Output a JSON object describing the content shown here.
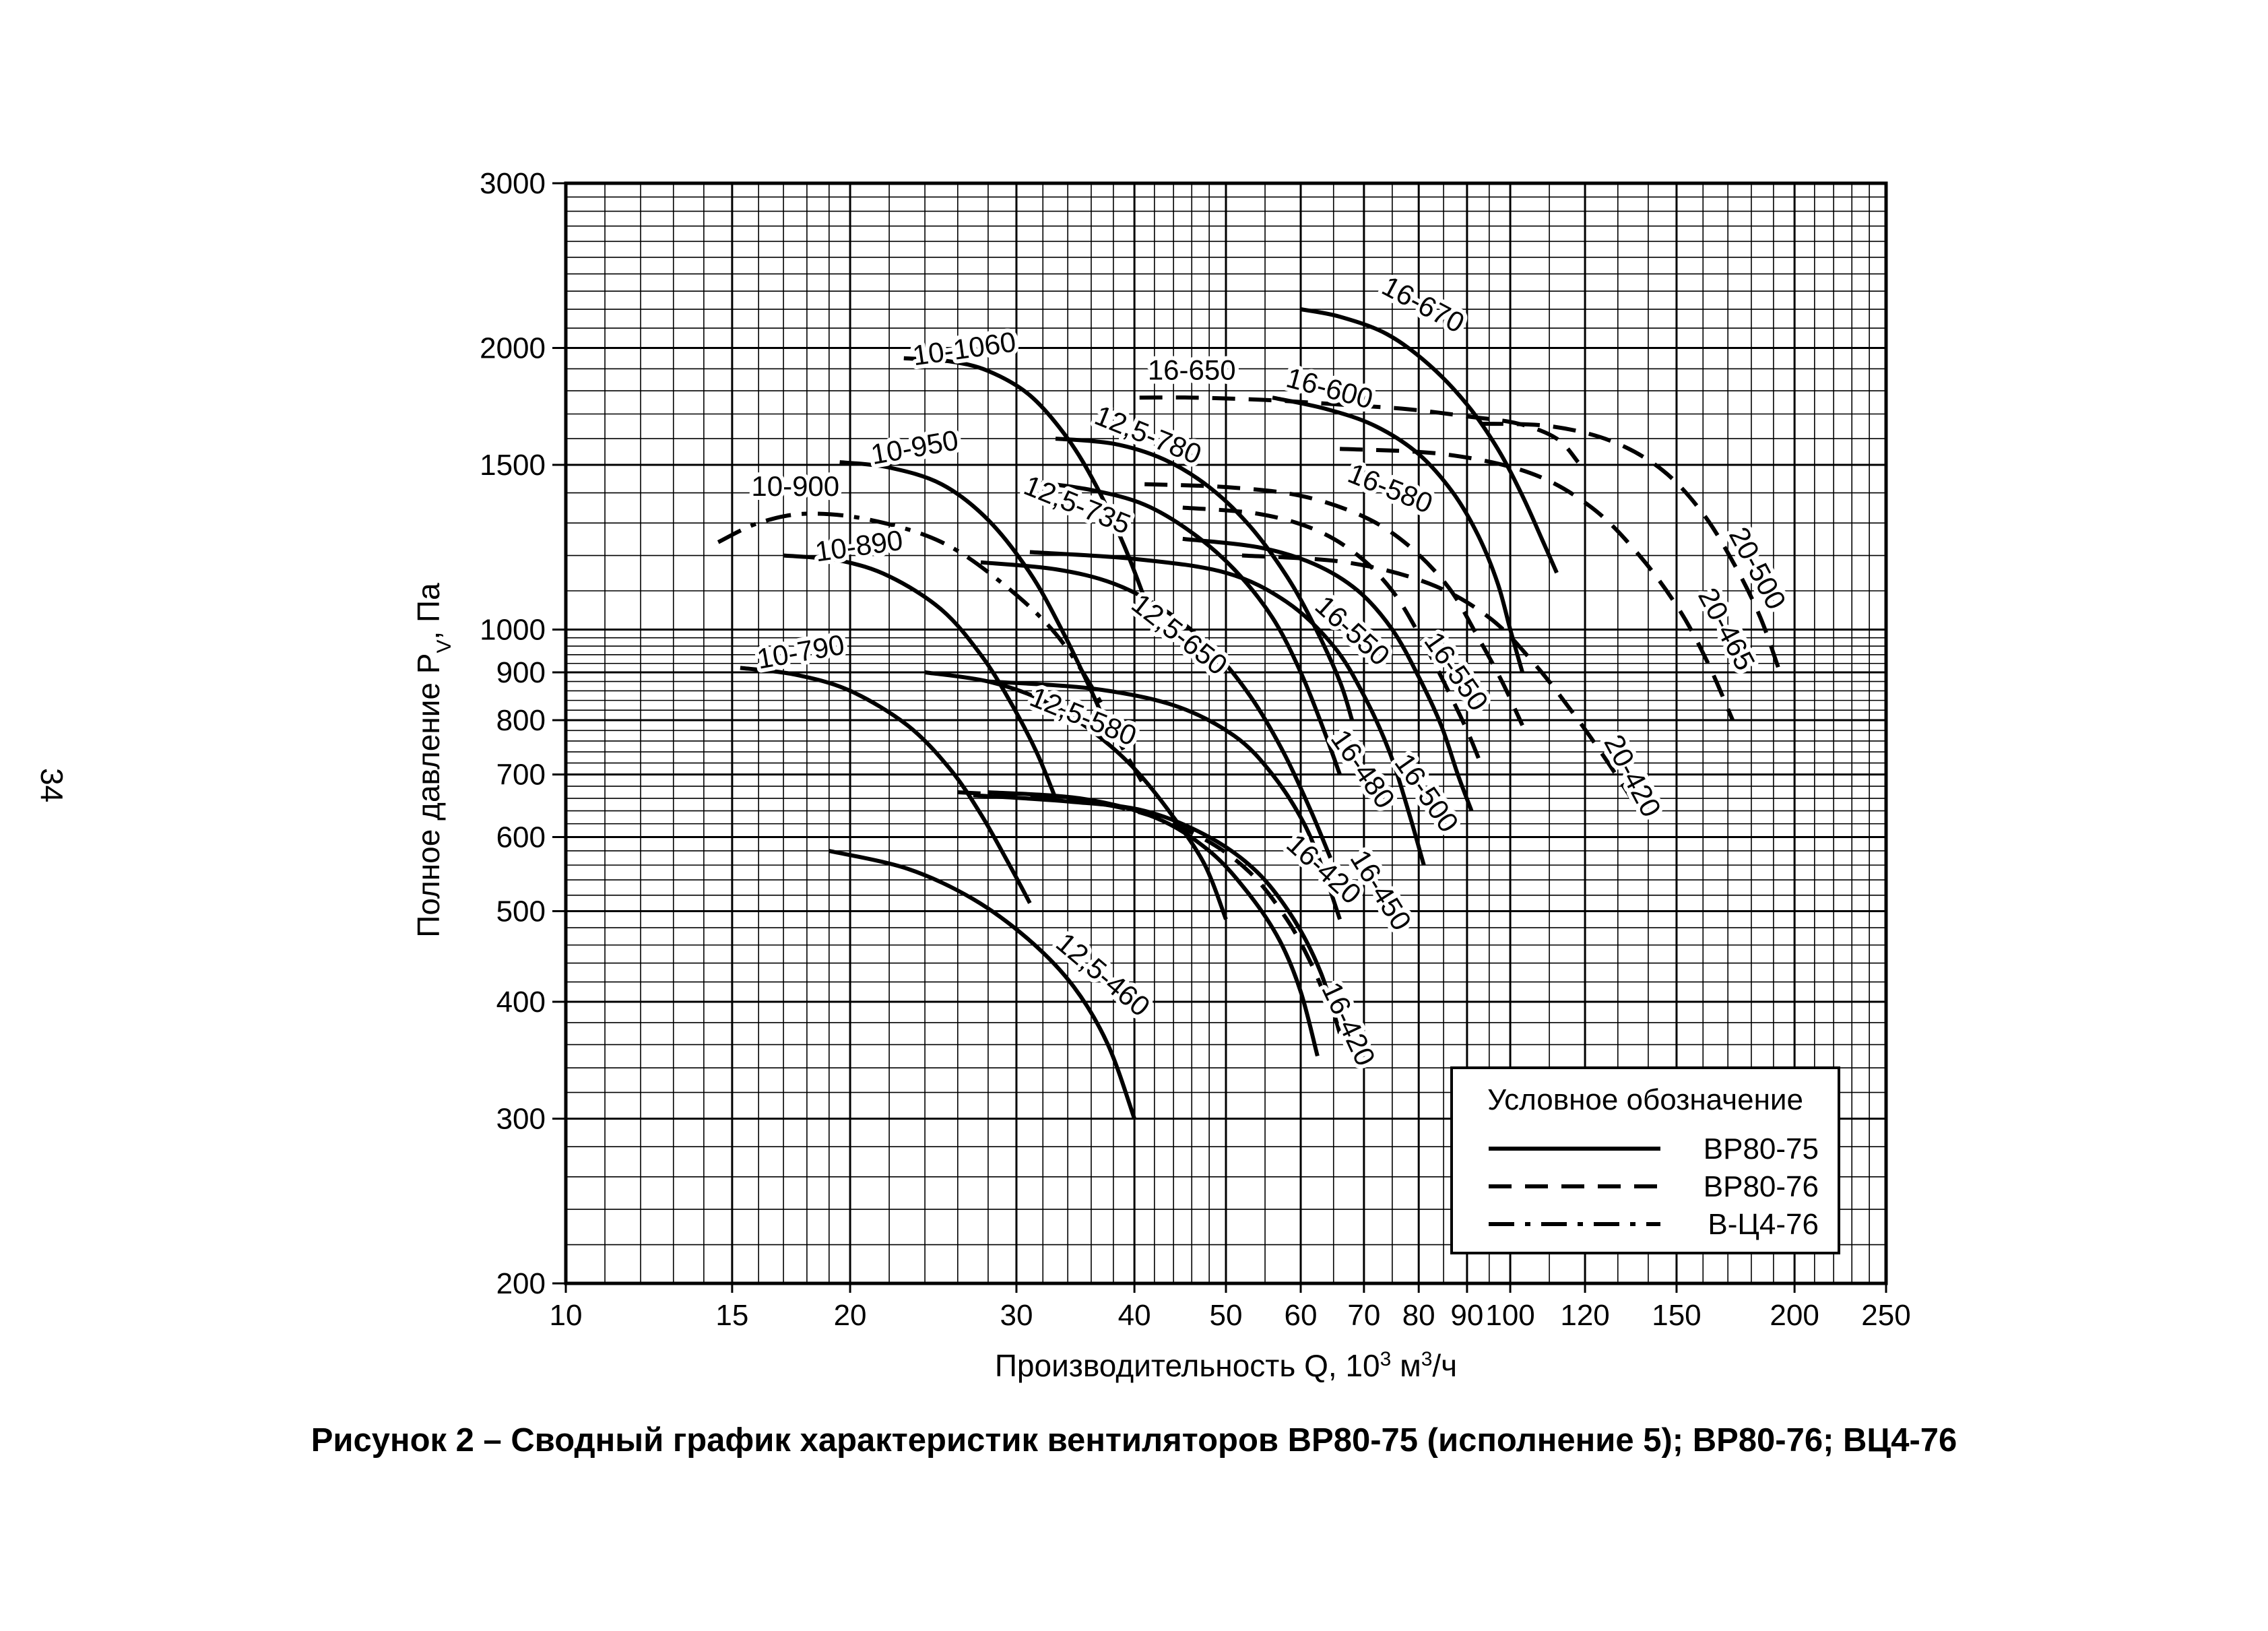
{
  "page_number": "34",
  "caption": "Рисунок 2 – Сводный график характеристик вентиляторов ВР80-75 (исполнение 5); ВР80-76; ВЦ4-76",
  "chart_data": {
    "type": "line",
    "xscale": "log",
    "yscale": "log",
    "grid": true,
    "xlim": [
      10,
      250
    ],
    "ylim": [
      200,
      3000
    ],
    "xlabel_main": "Производительность Q, 10",
    "xlabel_sup": "3",
    "xlabel_unit": " м",
    "xlabel_unit_sup": "3",
    "xlabel_tail": "/ч",
    "ylabel_main": "Полное давление P",
    "ylabel_sub": "V",
    "ylabel_tail": ", Па",
    "x_ticks": [
      {
        "value": 10,
        "label": "10"
      },
      {
        "value": 15,
        "label": "15"
      },
      {
        "value": 20,
        "label": "20"
      },
      {
        "value": 30,
        "label": "30"
      },
      {
        "value": 40,
        "label": "40"
      },
      {
        "value": 50,
        "label": "50"
      },
      {
        "value": 60,
        "label": "60"
      },
      {
        "value": 70,
        "label": "70"
      },
      {
        "value": 80,
        "label": "80"
      },
      {
        "value": 90,
        "label": "90"
      },
      {
        "value": 100,
        "label": "100"
      },
      {
        "value": 120,
        "label": "120"
      },
      {
        "value": 150,
        "label": "150"
      },
      {
        "value": 200,
        "label": "200"
      },
      {
        "value": 250,
        "label": "250"
      }
    ],
    "y_ticks": [
      {
        "value": 200,
        "label": "200"
      },
      {
        "value": 300,
        "label": "300"
      },
      {
        "value": 400,
        "label": "400"
      },
      {
        "value": 500,
        "label": "500"
      },
      {
        "value": 600,
        "label": "600"
      },
      {
        "value": 700,
        "label": "700"
      },
      {
        "value": 800,
        "label": "800"
      },
      {
        "value": 900,
        "label": "900"
      },
      {
        "value": 1000,
        "label": "1000"
      },
      {
        "value": 1500,
        "label": "1500"
      },
      {
        "value": 2000,
        "label": "2000"
      },
      {
        "value": 3000,
        "label": "3000"
      }
    ],
    "legend": {
      "title": "Условное обозначение",
      "placement": "bottom-right",
      "items": [
        {
          "label": "ВР80-75",
          "style": "solid"
        },
        {
          "label": "ВР80-76",
          "style": "dashed"
        },
        {
          "label": "В-Ц4-76",
          "style": "dashdot"
        }
      ]
    },
    "series": [
      {
        "name": "10-1060",
        "style": "solid",
        "label_at": [
          26.5,
          1950
        ],
        "label_angle": 8,
        "points": [
          [
            22.8,
            1950
          ],
          [
            25.5,
            1935
          ],
          [
            28,
            1890
          ],
          [
            31,
            1780
          ],
          [
            34,
            1600
          ],
          [
            36.5,
            1420
          ],
          [
            39,
            1230
          ],
          [
            41,
            1080
          ]
        ]
      },
      {
        "name": "10-950",
        "style": "solid",
        "label_at": [
          23.5,
          1530
        ],
        "label_angle": 10,
        "points": [
          [
            19.5,
            1510
          ],
          [
            22,
            1490
          ],
          [
            25,
            1430
          ],
          [
            28,
            1310
          ],
          [
            31,
            1150
          ],
          [
            33.5,
            1000
          ],
          [
            36,
            860
          ],
          [
            38,
            760
          ]
        ]
      },
      {
        "name": "10-890",
        "style": "solid",
        "label_at": [
          20.5,
          1200
        ],
        "label_angle": 8,
        "points": [
          [
            17,
            1200
          ],
          [
            19.5,
            1185
          ],
          [
            22,
            1140
          ],
          [
            25,
            1050
          ],
          [
            27.5,
            940
          ],
          [
            29.5,
            840
          ],
          [
            31.5,
            740
          ],
          [
            33,
            660
          ]
        ]
      },
      {
        "name": "10-790",
        "style": "solid",
        "label_at": [
          17.8,
          925
        ],
        "label_angle": 10,
        "points": [
          [
            15.3,
            910
          ],
          [
            17.5,
            895
          ],
          [
            20,
            860
          ],
          [
            23,
            790
          ],
          [
            25.5,
            710
          ],
          [
            27.5,
            635
          ],
          [
            29.5,
            560
          ],
          [
            31,
            510
          ]
        ]
      },
      {
        "name": "10-900",
        "style": "dashdot",
        "label_at": [
          17.5,
          1390
        ],
        "label_angle": 0,
        "points": [
          [
            14.5,
            1240
          ],
          [
            16,
            1300
          ],
          [
            18,
            1330
          ],
          [
            21,
            1310
          ],
          [
            25,
            1240
          ],
          [
            29,
            1120
          ],
          [
            33,
            990
          ],
          [
            36.5,
            850
          ],
          [
            38.5,
            760
          ],
          [
            41,
            680
          ]
        ]
      },
      {
        "name": "12,5-780",
        "style": "solid",
        "label_at": [
          41,
          1580
        ],
        "label_angle": -22,
        "points": [
          [
            33,
            1600
          ],
          [
            38,
            1580
          ],
          [
            43,
            1520
          ],
          [
            48,
            1420
          ],
          [
            53,
            1290
          ],
          [
            58,
            1140
          ],
          [
            62,
            1010
          ],
          [
            66,
            880
          ],
          [
            68,
            800
          ]
        ]
      },
      {
        "name": "12,5-735",
        "style": "solid",
        "label_at": [
          34.5,
          1330
        ],
        "label_angle": -22,
        "points": [
          [
            31,
            1440
          ],
          [
            36,
            1410
          ],
          [
            41,
            1360
          ],
          [
            46,
            1270
          ],
          [
            51,
            1160
          ],
          [
            56,
            1030
          ],
          [
            60,
            900
          ],
          [
            63.5,
            780
          ],
          [
            66,
            700
          ]
        ]
      },
      {
        "name": "12,5-650",
        "style": "solid",
        "label_at": [
          44,
          970
        ],
        "label_angle": -38,
        "points": [
          [
            27.5,
            1180
          ],
          [
            33,
            1160
          ],
          [
            38,
            1120
          ],
          [
            43,
            1050
          ],
          [
            48,
            960
          ],
          [
            53,
            850
          ],
          [
            57.5,
            740
          ],
          [
            61.5,
            640
          ],
          [
            64.5,
            570
          ]
        ]
      },
      {
        "name": "12,5-580",
        "style": "solid",
        "label_at": [
          35,
          790
        ],
        "label_angle": -22,
        "points": [
          [
            24,
            900
          ],
          [
            28,
            880
          ],
          [
            32,
            840
          ],
          [
            36,
            780
          ],
          [
            40,
            710
          ],
          [
            44,
            630
          ],
          [
            47.5,
            560
          ],
          [
            50,
            490
          ]
        ]
      },
      {
        "name": "12,5-460",
        "style": "solid",
        "label_at": [
          36.5,
          420
        ],
        "label_angle": -40,
        "points": [
          [
            19,
            580
          ],
          [
            23,
            555
          ],
          [
            27,
            515
          ],
          [
            31,
            465
          ],
          [
            34.5,
            415
          ],
          [
            37.5,
            360
          ],
          [
            40,
            300
          ]
        ]
      },
      {
        "name": "16-670",
        "style": "solid",
        "label_at": [
          80,
          2180
        ],
        "label_angle": -28,
        "points": [
          [
            60,
            2200
          ],
          [
            66,
            2160
          ],
          [
            74,
            2070
          ],
          [
            82,
            1920
          ],
          [
            90,
            1740
          ],
          [
            97,
            1560
          ],
          [
            103,
            1390
          ],
          [
            108,
            1250
          ],
          [
            112,
            1150
          ]
        ]
      },
      {
        "name": "16-650",
        "style": "dashed",
        "label_at": [
          46,
          1850
        ],
        "label_angle": 0,
        "points": [
          [
            40.5,
            1770
          ],
          [
            46,
            1770
          ],
          [
            55,
            1760
          ],
          [
            66,
            1740
          ],
          [
            78,
            1720
          ],
          [
            90,
            1690
          ],
          [
            102,
            1660
          ],
          [
            112,
            1600
          ],
          [
            118,
            1510
          ]
        ]
      },
      {
        "name": "16-600",
        "style": "solid",
        "label_at": [
          64,
          1770
        ],
        "label_angle": -15,
        "points": [
          [
            56,
            1770
          ],
          [
            64,
            1720
          ],
          [
            72,
            1650
          ],
          [
            80,
            1540
          ],
          [
            87,
            1400
          ],
          [
            92.5,
            1260
          ],
          [
            97,
            1120
          ],
          [
            100,
            1000
          ],
          [
            103,
            900
          ]
        ]
      },
      {
        "name": "16-580",
        "style": "dashed",
        "label_at": [
          74,
          1385
        ],
        "label_angle": -22,
        "points": [
          [
            41,
            1430
          ],
          [
            50,
            1420
          ],
          [
            60,
            1390
          ],
          [
            70,
            1320
          ],
          [
            78,
            1230
          ],
          [
            86,
            1110
          ],
          [
            92,
            990
          ],
          [
            98,
            880
          ],
          [
            103,
            790
          ]
        ]
      },
      {
        "name": "16-550",
        "style": "dashed",
        "label_at": [
          67,
          980
        ],
        "label_angle": -42,
        "points": [
          [
            45,
            1350
          ],
          [
            54,
            1330
          ],
          [
            62,
            1280
          ],
          [
            69,
            1200
          ],
          [
            75,
            1100
          ],
          [
            80,
            990
          ],
          [
            85,
            880
          ],
          [
            90,
            780
          ],
          [
            93,
            720
          ]
        ]
      },
      {
        "name": "16-550",
        "style": "solid",
        "label_at": [
          86,
          890
        ],
        "label_angle": -55,
        "points": [
          [
            45,
            1250
          ],
          [
            54,
            1225
          ],
          [
            62,
            1175
          ],
          [
            69,
            1100
          ],
          [
            75,
            1000
          ],
          [
            80,
            890
          ],
          [
            84.5,
            790
          ],
          [
            88,
            700
          ],
          [
            91,
            640
          ]
        ]
      },
      {
        "name": "16-500",
        "style": "solid",
        "label_at": [
          80,
          660
        ],
        "label_angle": -55,
        "points": [
          [
            31,
            1210
          ],
          [
            40,
            1190
          ],
          [
            50,
            1150
          ],
          [
            58,
            1070
          ],
          [
            65,
            960
          ],
          [
            70,
            850
          ],
          [
            74.5,
            740
          ],
          [
            78,
            640
          ],
          [
            81,
            560
          ]
        ]
      },
      {
        "name": "16-480",
        "style": "solid",
        "label_at": [
          68.5,
          700
        ],
        "label_angle": -55,
        "points": [
          [
            28,
            880
          ],
          [
            36,
            865
          ],
          [
            44,
            830
          ],
          [
            51,
            770
          ],
          [
            56,
            700
          ],
          [
            60.5,
            620
          ],
          [
            63.5,
            550
          ],
          [
            66,
            490
          ]
        ]
      },
      {
        "name": "16-450",
        "style": "solid",
        "label_at": [
          71.5,
          520
        ],
        "label_angle": -58,
        "points": [
          [
            27,
            665
          ],
          [
            34,
            655
          ],
          [
            41,
            640
          ],
          [
            48,
            600
          ],
          [
            54,
            550
          ],
          [
            59,
            490
          ],
          [
            63,
            430
          ],
          [
            66,
            370
          ]
        ]
      },
      {
        "name": "16-420",
        "style": "dashed",
        "label_at": [
          62.5,
          545
        ],
        "label_angle": -42,
        "points": [
          [
            26,
            670
          ],
          [
            33,
            660
          ],
          [
            40,
            640
          ],
          [
            47,
            600
          ],
          [
            53,
            550
          ],
          [
            58,
            490
          ],
          [
            61.5,
            440
          ],
          [
            64,
            400
          ]
        ]
      },
      {
        "name": "16-420",
        "style": "solid",
        "label_at": [
          66,
          375
        ],
        "label_angle": -65,
        "points": [
          [
            28,
            670
          ],
          [
            35,
            660
          ],
          [
            42,
            630
          ],
          [
            48,
            580
          ],
          [
            53,
            520
          ],
          [
            57,
            465
          ],
          [
            60,
            410
          ],
          [
            62.5,
            350
          ]
        ]
      },
      {
        "name": "20-500",
        "style": "dashed",
        "label_at": [
          179,
          1150
        ],
        "label_angle": -62,
        "points": [
          [
            93,
            1660
          ],
          [
            110,
            1650
          ],
          [
            128,
            1590
          ],
          [
            145,
            1480
          ],
          [
            160,
            1330
          ],
          [
            173,
            1170
          ],
          [
            184,
            1030
          ],
          [
            193,
            900
          ]
        ]
      },
      {
        "name": "20-465",
        "style": "dashed",
        "label_at": [
          166,
          990
        ],
        "label_angle": -62,
        "points": [
          [
            66,
            1560
          ],
          [
            85,
            1540
          ],
          [
            105,
            1470
          ],
          [
            122,
            1350
          ],
          [
            137,
            1200
          ],
          [
            151,
            1050
          ],
          [
            162,
            920
          ],
          [
            172,
            800
          ]
        ]
      },
      {
        "name": "20-420",
        "style": "dashed",
        "label_at": [
          132,
          690
        ],
        "label_angle": -62,
        "points": [
          [
            52,
            1200
          ],
          [
            67,
            1180
          ],
          [
            82,
            1120
          ],
          [
            95,
            1030
          ],
          [
            106,
            920
          ],
          [
            117,
            810
          ],
          [
            127,
            720
          ],
          [
            137,
            640
          ]
        ]
      }
    ]
  }
}
